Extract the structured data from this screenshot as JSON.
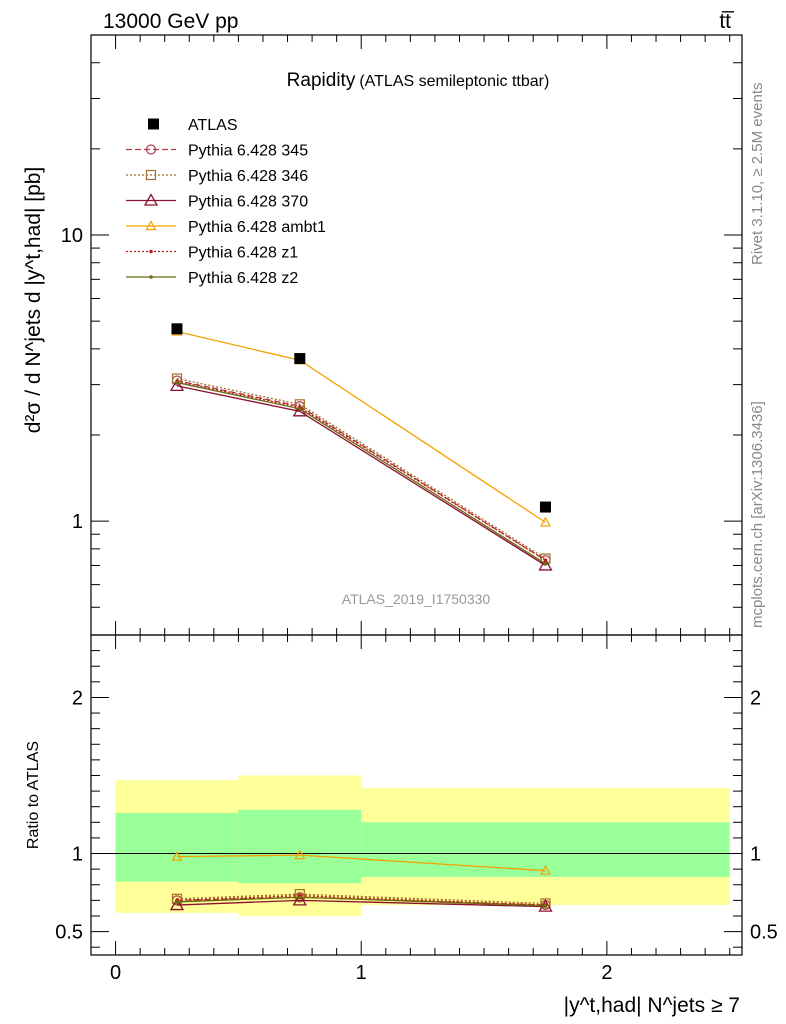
{
  "header": {
    "left": "13000 GeV pp",
    "right": "tt̅"
  },
  "side_labels": {
    "top": "Rivet 3.1.10, ≥ 2.5M events",
    "bottom": "mcplots.cern.ch [arXiv:1306.3436]"
  },
  "analysis_id": "ATLAS_2019_I1750330",
  "chart_data": [
    {
      "type": "line",
      "panel": "main",
      "title": "Rapidity",
      "subtitle": "(ATLAS semileptonic ttbar)",
      "ylabel": "d²σ / d N^jets d |y^t,had| [pb]",
      "yscale": "log",
      "ylim": [
        0.4,
        50
      ],
      "xlim": [
        -0.1,
        2.55
      ],
      "yticks": [
        {
          "value": 1,
          "label": "1"
        },
        {
          "value": 10,
          "label": "10"
        }
      ],
      "x": [
        0.25,
        0.75,
        1.75
      ],
      "data": {
        "name": "ATLAS",
        "x": [
          0.25,
          0.75,
          1.75
        ],
        "values": [
          4.7,
          3.7,
          1.12
        ],
        "xerr": [
          0.25,
          0.25,
          0.25
        ]
      },
      "series": [
        {
          "name": "Pythia 6.428 345",
          "values": [
            3.1,
            2.52,
            0.73
          ],
          "color": "#b03a48",
          "dash": "6,3",
          "marker": "circle"
        },
        {
          "name": "Pythia 6.428 346",
          "values": [
            3.15,
            2.56,
            0.74
          ],
          "color": "#a07028",
          "dash": "2,2",
          "marker": "square"
        },
        {
          "name": "Pythia 6.428 370",
          "values": [
            2.97,
            2.42,
            0.7
          ],
          "color": "#8b1030",
          "dash": "",
          "marker": "triangle"
        },
        {
          "name": "Pythia 6.428 ambt1",
          "values": [
            4.6,
            3.65,
            0.99
          ],
          "color": "#f5a000",
          "dash": "",
          "marker": "triangle-small"
        },
        {
          "name": "Pythia 6.428 z1",
          "values": [
            3.08,
            2.5,
            0.73
          ],
          "color": "#c01818",
          "dash": "2,2",
          "marker": "dot"
        },
        {
          "name": "Pythia 6.428 z2",
          "values": [
            3.05,
            2.47,
            0.71
          ],
          "color": "#6b6b10",
          "dash": "",
          "marker": "dot"
        }
      ],
      "legend_position": "top-left"
    },
    {
      "type": "line",
      "panel": "ratio",
      "ylabel": "Ratio to ATLAS",
      "xlabel": "|y^t,had| N^jets ≥ 7",
      "ylim": [
        0.35,
        2.4
      ],
      "xlim": [
        -0.1,
        2.55
      ],
      "yticks": [
        {
          "value": 0.5,
          "label": "0.5"
        },
        {
          "value": 1,
          "label": "1"
        },
        {
          "value": 2,
          "label": "2"
        }
      ],
      "xticks": [
        {
          "value": 0,
          "label": "0"
        },
        {
          "value": 1,
          "label": "1"
        },
        {
          "value": 2,
          "label": "2"
        }
      ],
      "bands": [
        {
          "x0": 0,
          "x1": 0.5,
          "inner": [
            0.82,
            1.26
          ],
          "outer": [
            0.62,
            1.47
          ]
        },
        {
          "x0": 0.5,
          "x1": 1,
          "inner": [
            0.81,
            1.28
          ],
          "outer": [
            0.6,
            1.5
          ]
        },
        {
          "x0": 1,
          "x1": 2.5,
          "inner": [
            0.85,
            1.2
          ],
          "outer": [
            0.67,
            1.42
          ]
        }
      ],
      "band_colors": {
        "inner": "#99ff99",
        "outer": "#ffff99"
      },
      "x": [
        0.25,
        0.75,
        1.75
      ],
      "series": [
        {
          "name": "Pythia 6.428 345",
          "values": [
            0.7,
            0.72,
            0.67
          ]
        },
        {
          "name": "Pythia 6.428 346",
          "values": [
            0.71,
            0.74,
            0.68
          ]
        },
        {
          "name": "Pythia 6.428 370",
          "values": [
            0.67,
            0.7,
            0.66
          ]
        },
        {
          "name": "Pythia 6.428 ambt1",
          "values": [
            0.98,
            0.99,
            0.89
          ]
        },
        {
          "name": "Pythia 6.428 z1",
          "values": [
            0.7,
            0.73,
            0.67
          ]
        },
        {
          "name": "Pythia 6.428 z2",
          "values": [
            0.69,
            0.72,
            0.665
          ]
        }
      ]
    }
  ]
}
